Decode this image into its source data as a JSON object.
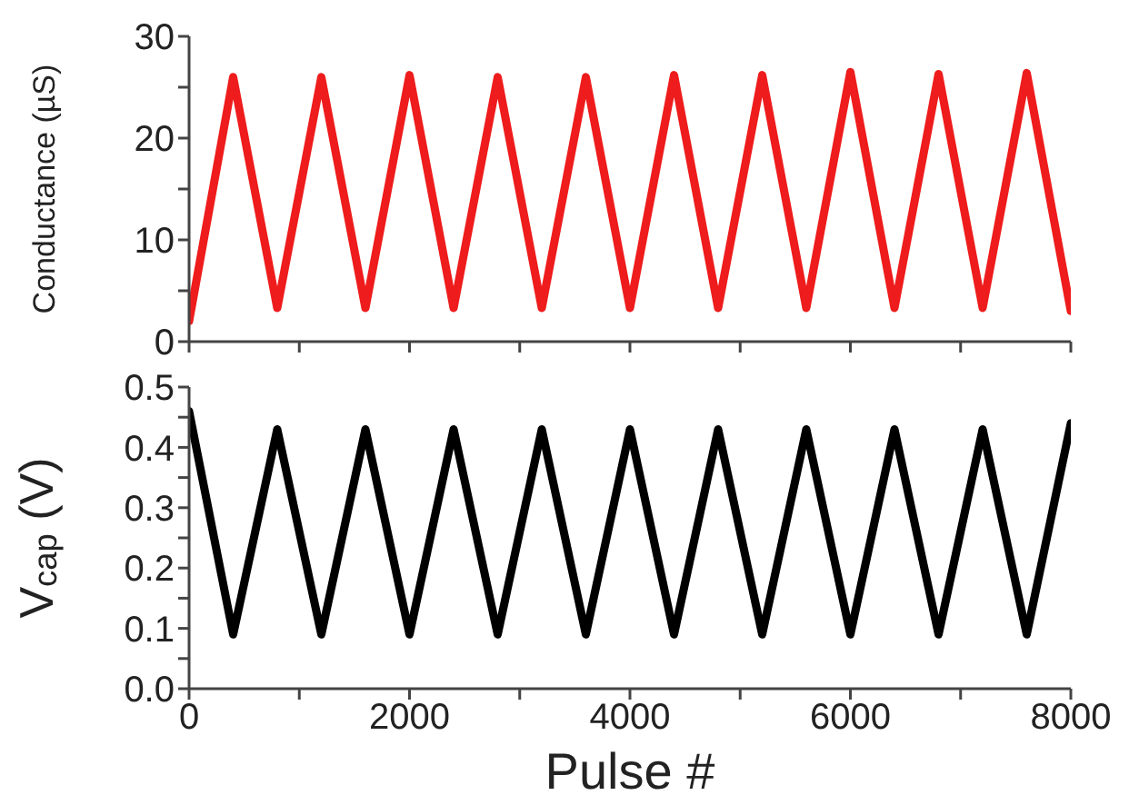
{
  "chart_data": [
    {
      "type": "line",
      "ylabel": "Conductance (µS)",
      "x": [
        0,
        400,
        800,
        1200,
        1600,
        2000,
        2400,
        2800,
        3200,
        3600,
        4000,
        4400,
        4800,
        5200,
        5600,
        6000,
        6400,
        6800,
        7200,
        7600,
        8000
      ],
      "series": [
        {
          "color": "#ee1c1c",
          "values": [
            2,
            26,
            3.3,
            26,
            3.3,
            26.2,
            3.3,
            26,
            3.3,
            26,
            3.3,
            26.2,
            3.3,
            26.2,
            3.3,
            26.5,
            3.3,
            26.3,
            3.3,
            26.4,
            3
          ]
        }
      ],
      "xlim": [
        0,
        8000
      ],
      "xticks": [
        0,
        {
          "value": 1000,
          "label": null
        },
        2000,
        {
          "value": 3000,
          "label": null
        },
        4000,
        {
          "value": 5000,
          "label": null
        },
        6000,
        {
          "value": 7000,
          "label": null
        },
        8000
      ],
      "ylim": [
        0,
        30
      ],
      "yticks": [
        0,
        {
          "value": 5,
          "label": null
        },
        10,
        {
          "value": 15,
          "label": null
        },
        20,
        {
          "value": 25,
          "label": null
        },
        30
      ],
      "tick_labels": "y",
      "grid": false,
      "legend": false,
      "marker": "none",
      "line_style": "solid"
    },
    {
      "type": "line",
      "xlabel": "Pulse #",
      "ylabel": "V$_{cap}$ (V)",
      "x": [
        0,
        400,
        800,
        1200,
        1600,
        2000,
        2400,
        2800,
        3200,
        3600,
        4000,
        4400,
        4800,
        5200,
        5600,
        6000,
        6400,
        6800,
        7200,
        7600,
        8000
      ],
      "series": [
        {
          "color": "#000000",
          "values": [
            0.46,
            0.09,
            0.43,
            0.09,
            0.43,
            0.09,
            0.43,
            0.09,
            0.43,
            0.09,
            0.43,
            0.09,
            0.43,
            0.09,
            0.43,
            0.09,
            0.43,
            0.09,
            0.43,
            0.09,
            0.44
          ]
        }
      ],
      "xlim": [
        0,
        8000
      ],
      "xticks": [
        0,
        {
          "value": 1000,
          "label": null
        },
        2000,
        {
          "value": 3000,
          "label": null
        },
        4000,
        {
          "value": 5000,
          "label": null
        },
        6000,
        {
          "value": 7000,
          "label": null
        },
        8000
      ],
      "ylim": [
        0,
        0.5
      ],
      "yticks": [
        {
          "value": 0,
          "label": "0.0"
        },
        {
          "value": 0.05,
          "label": null
        },
        0.1,
        {
          "value": 0.15,
          "label": null
        },
        0.2,
        {
          "value": 0.25,
          "label": null
        },
        0.3,
        {
          "value": 0.35,
          "label": null
        },
        0.4,
        {
          "value": 0.45,
          "label": null
        },
        0.5
      ],
      "grid": false,
      "legend": false,
      "marker": "none",
      "line_style": "solid"
    }
  ]
}
